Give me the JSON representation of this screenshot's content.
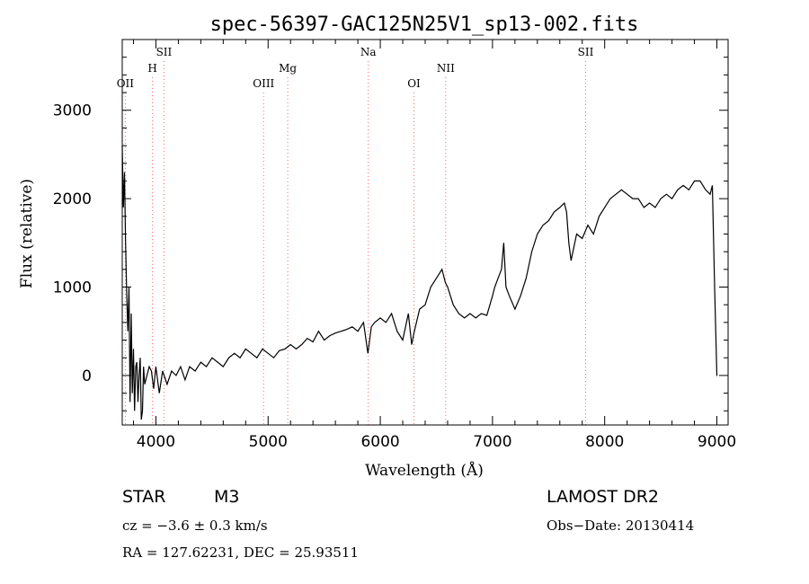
{
  "chart_data": {
    "type": "line",
    "title": "spec-56397-GAC125N25V1_sp13-002.fits",
    "xlabel": "Wavelength (Å)",
    "ylabel": "Flux (relative)",
    "xlim": [
      3700,
      9100
    ],
    "ylim": [
      -560,
      3800
    ],
    "x_ticks": [
      4000,
      5000,
      6000,
      7000,
      8000,
      9000
    ],
    "y_ticks": [
      0,
      1000,
      2000,
      3000
    ],
    "grid": false,
    "line_color": "#000000",
    "marker_color": "#ff6666",
    "series": [
      {
        "x": [
          3700,
          3710,
          3720,
          3730,
          3740,
          3750,
          3760,
          3770,
          3780,
          3790,
          3800,
          3810,
          3820,
          3830,
          3840,
          3850,
          3860,
          3870,
          3880,
          3890,
          3900,
          3920,
          3940,
          3960,
          3980,
          4000,
          4030,
          4060,
          4100,
          4140,
          4180,
          4220,
          4260,
          4300,
          4350,
          4400,
          4450,
          4500,
          4550,
          4600,
          4650,
          4700,
          4750,
          4800,
          4850,
          4900,
          4950,
          5000,
          5050,
          5100,
          5150,
          5200,
          5250,
          5300,
          5350,
          5400,
          5450,
          5500,
          5550,
          5600,
          5650,
          5700,
          5750,
          5800,
          5850,
          5890,
          5920,
          5950,
          6000,
          6050,
          6100,
          6150,
          6200,
          6250,
          6280,
          6300,
          6350,
          6400,
          6450,
          6500,
          6550,
          6580,
          6600,
          6650,
          6700,
          6750,
          6800,
          6850,
          6900,
          6950,
          7000,
          7020,
          7050,
          7080,
          7100,
          7120,
          7150,
          7200,
          7250,
          7300,
          7350,
          7400,
          7450,
          7500,
          7550,
          7600,
          7640,
          7660,
          7680,
          7700,
          7750,
          7800,
          7850,
          7900,
          7950,
          8000,
          8050,
          8100,
          8150,
          8200,
          8250,
          8300,
          8350,
          8400,
          8450,
          8500,
          8550,
          8600,
          8650,
          8700,
          8750,
          8800,
          8850,
          8900,
          8940,
          8960,
          8980,
          9000,
          9005
        ],
        "y": [
          2600,
          1900,
          2300,
          1500,
          900,
          500,
          1000,
          -300,
          700,
          -200,
          300,
          -400,
          100,
          150,
          -300,
          0,
          200,
          -500,
          -400,
          100,
          -100,
          0,
          100,
          50,
          -150,
          100,
          -200,
          50,
          -100,
          50,
          0,
          100,
          -50,
          100,
          50,
          150,
          100,
          200,
          150,
          100,
          200,
          250,
          200,
          300,
          250,
          200,
          300,
          250,
          200,
          280,
          300,
          350,
          300,
          350,
          420,
          380,
          500,
          400,
          450,
          480,
          500,
          520,
          550,
          500,
          600,
          250,
          550,
          600,
          650,
          600,
          700,
          500,
          400,
          700,
          350,
          480,
          750,
          800,
          1000,
          1100,
          1200,
          1050,
          1000,
          800,
          700,
          650,
          700,
          650,
          700,
          680,
          900,
          1000,
          1100,
          1200,
          1500,
          1000,
          900,
          750,
          900,
          1100,
          1400,
          1600,
          1700,
          1750,
          1850,
          1900,
          1950,
          1850,
          1500,
          1300,
          1600,
          1550,
          1700,
          1600,
          1800,
          1900,
          2000,
          2050,
          2100,
          2050,
          2000,
          2000,
          1900,
          1950,
          1900,
          2000,
          2050,
          2000,
          2100,
          2150,
          2100,
          2200,
          2200,
          2100,
          2050,
          2150,
          1000,
          0,
          0
        ]
      }
    ],
    "lines": [
      {
        "label": "OII",
        "wavelength": 3727,
        "row": 3
      },
      {
        "label": "H",
        "wavelength": 3969,
        "row": 2
      },
      {
        "label": "SII",
        "wavelength": 4072,
        "row": 1
      },
      {
        "label": "OIII",
        "wavelength": 4960,
        "row": 3
      },
      {
        "label": "Mg",
        "wavelength": 5175,
        "row": 2
      },
      {
        "label": "Na",
        "wavelength": 5893,
        "row": 1
      },
      {
        "label": "OI",
        "wavelength": 6300,
        "row": 3
      },
      {
        "label": "NII",
        "wavelength": 6583,
        "row": 2
      },
      {
        "label": "SII",
        "wavelength": 7830,
        "row": 1
      }
    ]
  },
  "info": {
    "class": "STAR",
    "subclass": "M3",
    "survey": "LAMOST DR2",
    "cz": "cz = −3.6 ± 0.3 km/s",
    "obs_date": "Obs−Date: 20130414",
    "coords": "RA = 127.62231, DEC =  25.93511"
  }
}
